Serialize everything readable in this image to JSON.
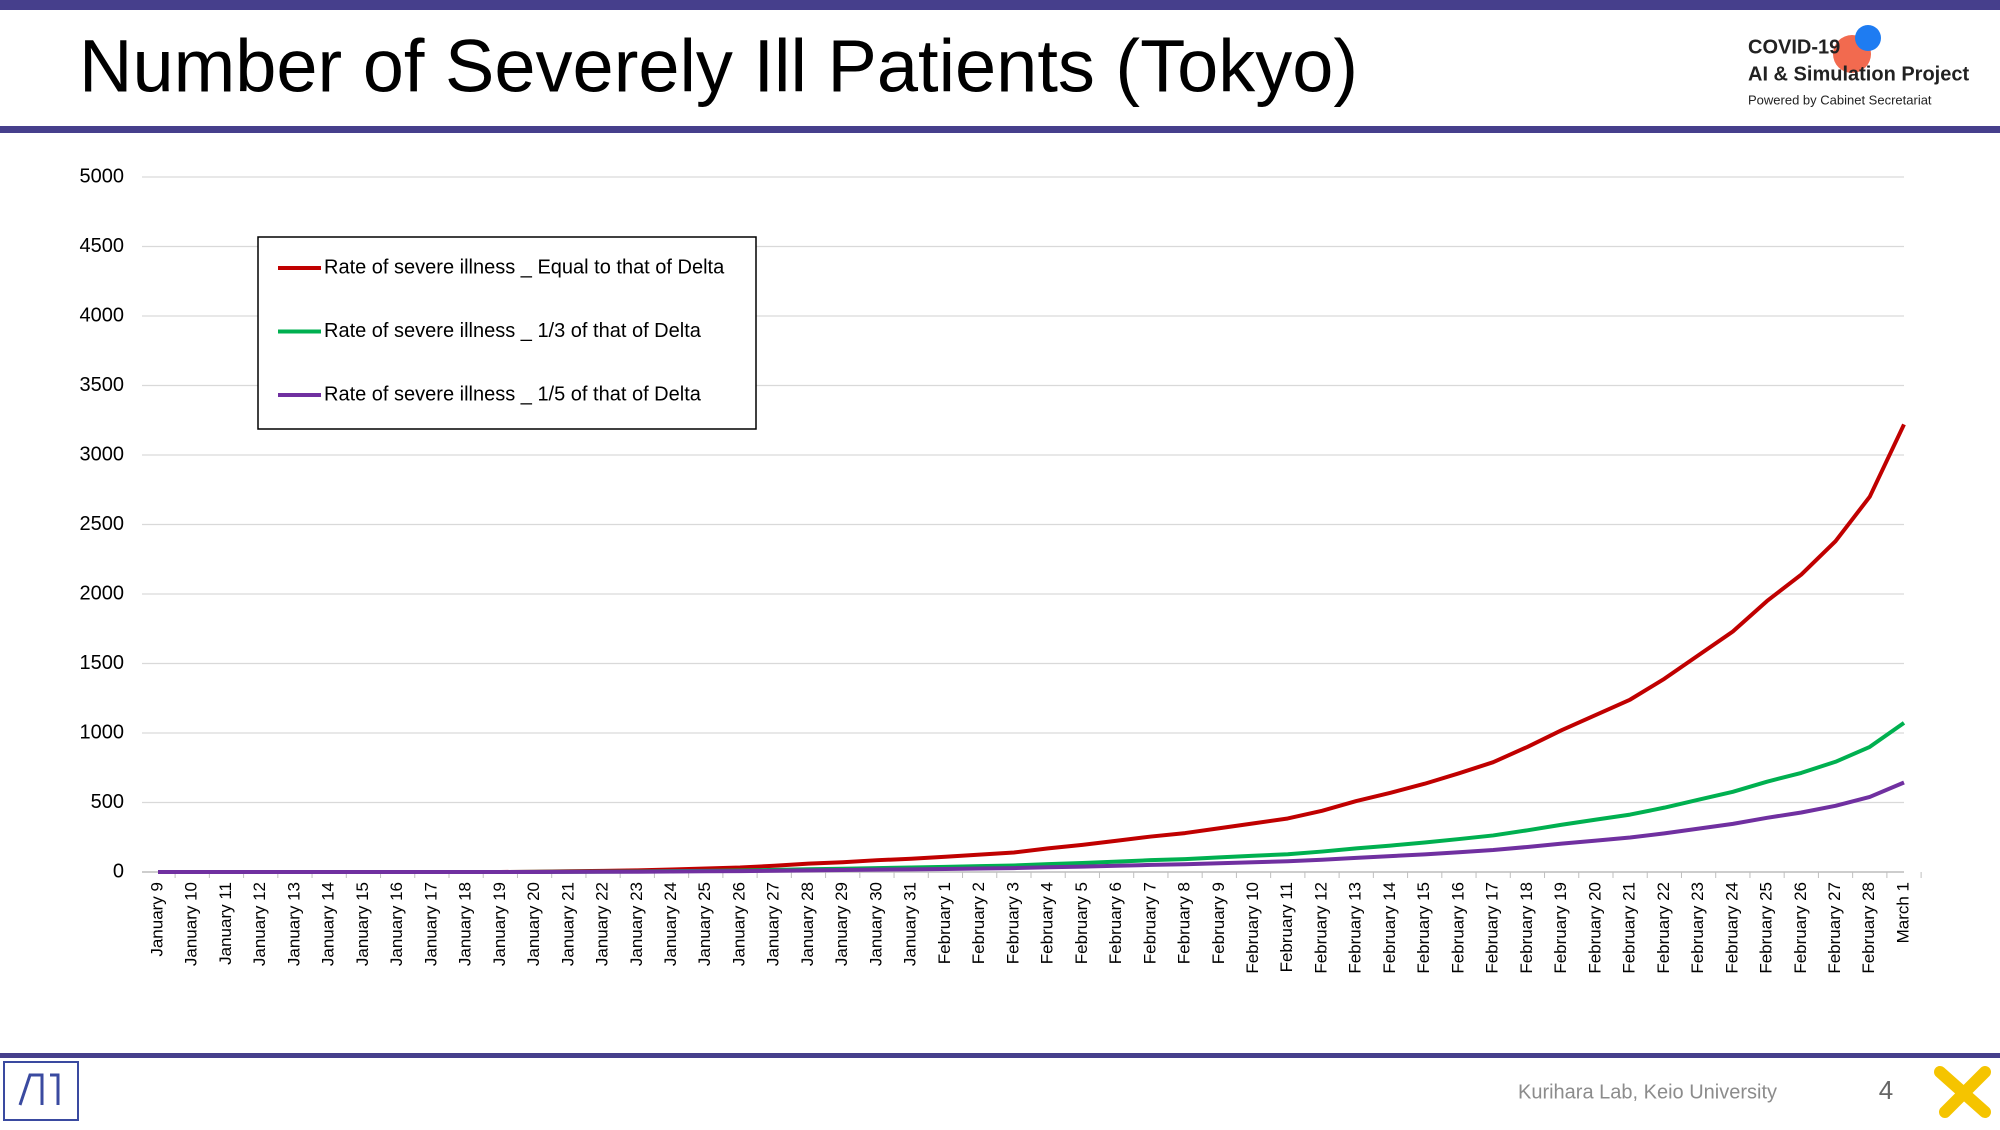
{
  "header": {
    "title": "Number of Severely Ill Patients (Tokyo)",
    "logo_line1": "COVID-19",
    "logo_line2": "AI & Simulation Project",
    "logo_line3": "Powered by Cabinet Secretariat"
  },
  "chart_data": {
    "type": "line",
    "categories": [
      "January 9",
      "January 10",
      "January 11",
      "January 12",
      "January 13",
      "January 14",
      "January 15",
      "January 16",
      "January 17",
      "January 18",
      "January 19",
      "January 20",
      "January 21",
      "January 22",
      "January 23",
      "January 24",
      "January 25",
      "January 26",
      "January 27",
      "January 28",
      "January 29",
      "January 30",
      "January 31",
      "February 1",
      "February 2",
      "February 3",
      "February 4",
      "February 5",
      "February 6",
      "February 7",
      "February 8",
      "February 9",
      "February 10",
      "February 11",
      "February 12",
      "February 13",
      "February 14",
      "February 15",
      "February 16",
      "February 17",
      "February 18",
      "February 19",
      "February 20",
      "February 21",
      "February 22",
      "February 23",
      "February 24",
      "February 25",
      "February 26",
      "February 27",
      "February 28",
      "March 1"
    ],
    "series": [
      {
        "name": "Rate of severe illness _ Equal to that of Delta",
        "color": "#c00000",
        "values": [
          0,
          0,
          0,
          0,
          0,
          0,
          0,
          0,
          0,
          0,
          0,
          2,
          5,
          8,
          12,
          18,
          25,
          32,
          45,
          60,
          70,
          85,
          95,
          110,
          125,
          140,
          170,
          195,
          225,
          255,
          280,
          315,
          350,
          385,
          440,
          510,
          570,
          635,
          710,
          790,
          900,
          1020,
          1130,
          1240,
          1390,
          1560,
          1730,
          1950,
          2140,
          2380,
          2700,
          3220
        ]
      },
      {
        "name": "Rate of severe illness _ 1/3 of that of Delta",
        "color": "#00b050",
        "values": [
          0,
          0,
          0,
          0,
          0,
          0,
          0,
          0,
          0,
          0,
          0,
          1,
          2,
          3,
          4,
          6,
          8,
          11,
          15,
          20,
          23,
          28,
          32,
          37,
          42,
          47,
          57,
          65,
          75,
          85,
          93,
          105,
          117,
          128,
          147,
          170,
          190,
          212,
          237,
          263,
          300,
          340,
          377,
          413,
          463,
          520,
          577,
          650,
          713,
          793,
          900,
          1073
        ]
      },
      {
        "name": "Rate of severe illness _ 1/5 of that of Delta",
        "color": "#7030a0",
        "values": [
          0,
          0,
          0,
          0,
          0,
          0,
          0,
          0,
          0,
          0,
          0,
          0,
          1,
          2,
          2,
          4,
          5,
          6,
          9,
          12,
          14,
          17,
          19,
          22,
          25,
          28,
          34,
          39,
          45,
          51,
          56,
          63,
          70,
          77,
          88,
          102,
          114,
          127,
          142,
          158,
          180,
          204,
          226,
          248,
          278,
          312,
          346,
          390,
          428,
          476,
          540,
          644
        ]
      }
    ],
    "ylim": [
      0,
      5000
    ],
    "yticks": [
      0,
      500,
      1000,
      1500,
      2000,
      2500,
      3000,
      3500,
      4000,
      4500,
      5000
    ],
    "grid": true,
    "legend": "top-left"
  },
  "footer": {
    "credit": "Kurihara Lab, Keio University",
    "page": "4"
  }
}
